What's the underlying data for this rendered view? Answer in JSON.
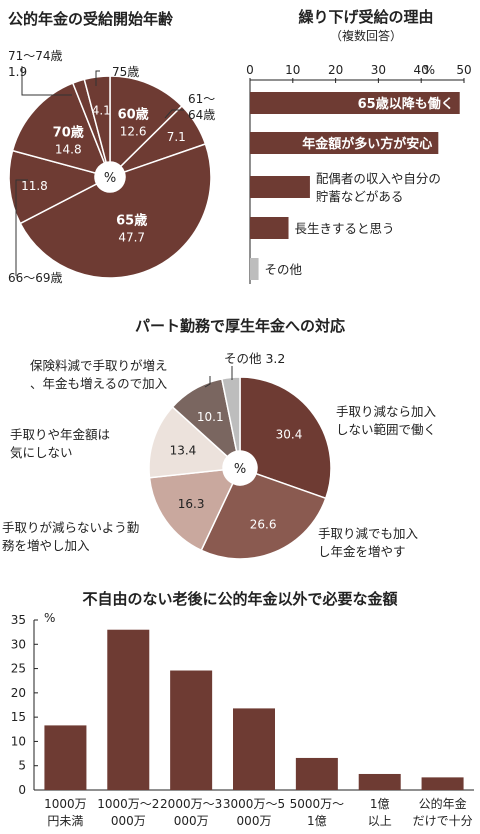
{
  "colors": {
    "dark": "#6e3b33",
    "mid": "#8a5a50",
    "light": "#c9a89e",
    "pale": "#ece2dc",
    "gray": "#bdbdbd",
    "brown_gray": "#7a6660",
    "axis": "#222222",
    "bg": "#ffffff"
  },
  "chart_data": [
    {
      "type": "pie",
      "title": "公的年金の受給開始年齢",
      "center_label": "%",
      "slices": [
        {
          "label": "60歳",
          "value": 12.6
        },
        {
          "label": "61～64歳",
          "value": 7.1
        },
        {
          "label": "65歳",
          "value": 47.7
        },
        {
          "label": "66～69歳",
          "value": 11.8
        },
        {
          "label": "70歳",
          "value": 14.8
        },
        {
          "label": "71～74歳",
          "value": 1.9
        },
        {
          "label": "75歳",
          "value": 4.1
        }
      ]
    },
    {
      "type": "bar",
      "orientation": "horizontal",
      "title": "繰り下げ受給の理由",
      "subtitle": "（複数回答）",
      "unit": "%",
      "xlim": [
        0,
        50
      ],
      "ticks": [
        0,
        10,
        20,
        30,
        40,
        50
      ],
      "categories": [
        "65歳以降も働く",
        "年金額が多い方が安心",
        "配偶者の収入や自分の貯蓄などがある",
        "長生きすると思う",
        "その他"
      ],
      "values": [
        49,
        44,
        14,
        9,
        2
      ]
    },
    {
      "type": "pie",
      "title": "パート勤務で厚生年金への対応",
      "center_label": "%",
      "slices": [
        {
          "label": "手取り減なら加入しない範囲で働く",
          "value": 30.4
        },
        {
          "label": "手取り減でも加入し年金を増やす",
          "value": 26.6
        },
        {
          "label": "手取りが減らないよう勤務を増やし加入",
          "value": 16.3
        },
        {
          "label": "手取りや年金額は気にしない",
          "value": 13.4
        },
        {
          "label": "保険料減で手取りが増え、年金も増えるので加入",
          "value": 10.1
        },
        {
          "label": "その他",
          "value": 3.2
        }
      ]
    },
    {
      "type": "bar",
      "title": "不自由のない老後に公的年金以外で必要な金額",
      "unit": "%",
      "ylim": [
        0,
        35
      ],
      "yticks": [
        0,
        5,
        10,
        15,
        20,
        25,
        30,
        35
      ],
      "categories": [
        "1000万円未満",
        "1000万～2000万",
        "2000万～3000万",
        "3000万～5000万",
        "5000万～1億",
        "1億以上",
        "公的年金だけで十分"
      ],
      "values": [
        13.3,
        33.0,
        24.6,
        16.8,
        6.6,
        3.3,
        2.6
      ]
    }
  ]
}
